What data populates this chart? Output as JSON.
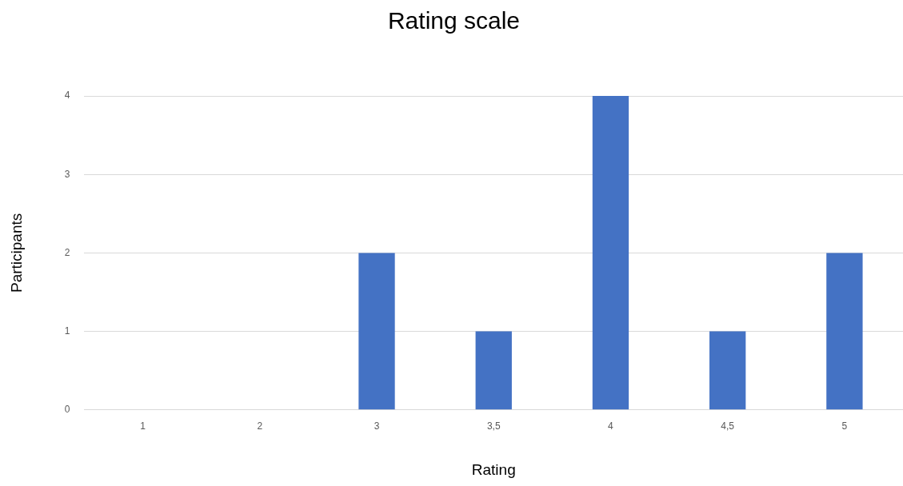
{
  "chart_data": {
    "type": "bar",
    "title": "Rating scale",
    "xlabel": "Rating",
    "ylabel": "Participants",
    "categories": [
      "1",
      "2",
      "3",
      "3,5",
      "4",
      "4,5",
      "5"
    ],
    "values": [
      0,
      0,
      2,
      1,
      4,
      1,
      2
    ],
    "color": "#4472c4",
    "ylim": [
      0,
      4
    ],
    "yticks": [
      0,
      1,
      2,
      3,
      4
    ],
    "grid": "y",
    "legend": false
  }
}
